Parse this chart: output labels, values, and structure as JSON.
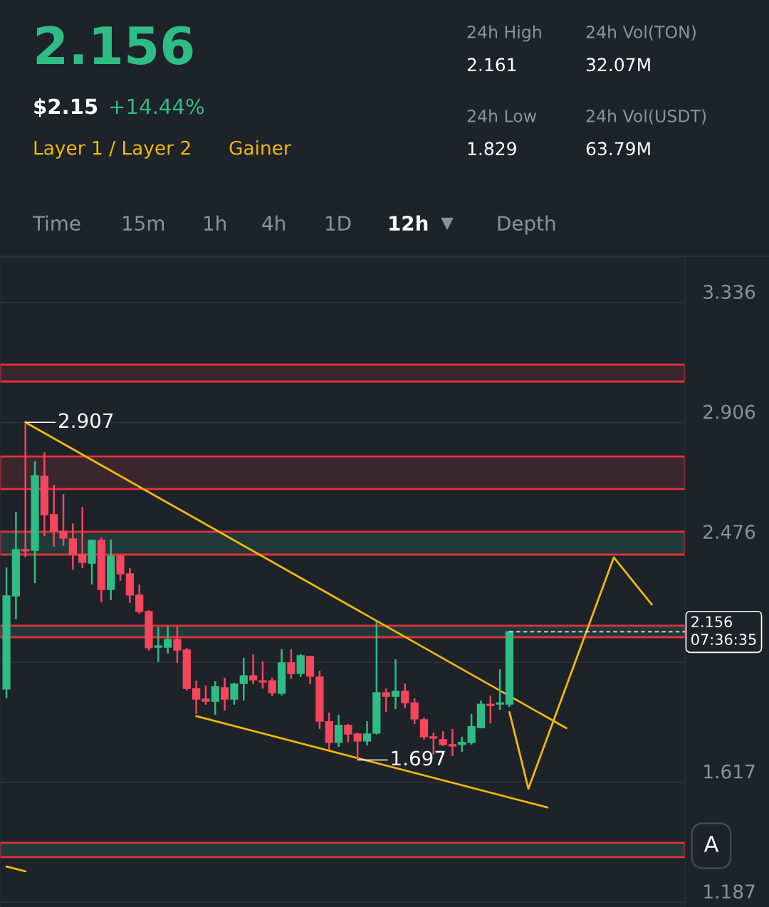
{
  "chart_data": {
    "type": "candlestick",
    "categories": [
      null,
      null,
      null,
      null,
      null,
      null,
      null,
      null,
      null,
      null,
      null,
      null,
      null,
      null,
      null,
      null,
      null,
      null,
      null,
      null,
      null,
      null,
      null,
      null,
      null,
      null,
      null,
      null,
      null,
      null,
      null,
      null,
      null,
      null,
      null,
      null,
      null,
      null,
      null,
      null,
      null,
      null,
      null,
      null,
      null,
      null,
      null,
      null,
      null,
      null,
      null,
      null,
      null,
      null,
      null,
      null,
      null,
      null,
      null,
      null,
      null,
      null,
      null,
      null,
      null,
      null,
      null,
      null,
      null,
      null,
      null,
      null
    ],
    "series": [
      {
        "type": "candlestick",
        "ohlc": [
          [
            1.951,
            2.387,
            1.918,
            2.285
          ],
          [
            2.285,
            2.586,
            2.201,
            2.451
          ],
          [
            2.451,
            2.907,
            2.423,
            2.446
          ],
          [
            2.448,
            2.767,
            2.331,
            2.716
          ],
          [
            2.714,
            2.8,
            2.499,
            2.576
          ],
          [
            2.576,
            2.683,
            2.461,
            2.517
          ],
          [
            2.517,
            2.65,
            2.464,
            2.492
          ],
          [
            2.489,
            2.545,
            2.379,
            2.433
          ],
          [
            2.433,
            2.604,
            2.385,
            2.405
          ],
          [
            2.402,
            2.487,
            2.326,
            2.484
          ],
          [
            2.484,
            2.494,
            2.262,
            2.308
          ],
          [
            2.308,
            2.487,
            2.27,
            2.428
          ],
          [
            2.428,
            2.433,
            2.339,
            2.364
          ],
          [
            2.364,
            2.385,
            2.26,
            2.288
          ],
          [
            2.288,
            2.326,
            2.221,
            2.229
          ],
          [
            2.229,
            2.234,
            2.089,
            2.099
          ],
          [
            2.101,
            2.173,
            2.048,
            2.106
          ],
          [
            2.101,
            2.175,
            2.078,
            2.129
          ],
          [
            2.129,
            2.175,
            2.045,
            2.091
          ],
          [
            2.091,
            2.099,
            1.946,
            1.953
          ],
          [
            1.953,
            1.981,
            1.862,
            1.915
          ],
          [
            1.915,
            1.964,
            1.895,
            1.907
          ],
          [
            1.907,
            1.979,
            1.859,
            1.959
          ],
          [
            1.956,
            1.992,
            1.874,
            1.915
          ],
          [
            1.915,
            1.974,
            1.895,
            1.969
          ],
          [
            1.971,
            2.063,
            1.91,
            1.999
          ],
          [
            1.999,
            2.076,
            1.969,
            1.984
          ],
          [
            1.981,
            2.05,
            1.953,
            1.976
          ],
          [
            1.981,
            1.992,
            1.925,
            1.938
          ],
          [
            1.936,
            2.094,
            1.928,
            2.045
          ],
          [
            2.045,
            2.094,
            1.987,
            2.007
          ],
          [
            2.007,
            2.076,
            1.994,
            2.071
          ],
          [
            2.068,
            2.068,
            1.969,
            1.997
          ],
          [
            1.994,
            2.017,
            1.808,
            1.836
          ],
          [
            1.834,
            1.867,
            1.734,
            1.76
          ],
          [
            1.76,
            1.859,
            1.744,
            1.821
          ],
          [
            1.821,
            1.826,
            1.76,
            1.79
          ],
          [
            1.79,
            1.795,
            1.697,
            1.765
          ],
          [
            1.765,
            1.836,
            1.749,
            1.79
          ],
          [
            1.793,
            2.193,
            1.788,
            1.938
          ],
          [
            1.938,
            1.953,
            1.869,
            1.925
          ],
          [
            1.925,
            2.058,
            1.879,
            1.943
          ],
          [
            1.943,
            1.971,
            1.882,
            1.902
          ],
          [
            1.902,
            1.918,
            1.826,
            1.844
          ],
          [
            1.841,
            1.849,
            1.77,
            1.78
          ],
          [
            1.78,
            1.795,
            1.716,
            1.775
          ],
          [
            1.77,
            1.8,
            1.747,
            1.752
          ],
          [
            1.752,
            1.808,
            1.711,
            1.747
          ],
          [
            1.752,
            1.78,
            1.726,
            1.76
          ],
          [
            1.76,
            1.862,
            1.752,
            1.816
          ],
          [
            1.813,
            1.91,
            1.811,
            1.897
          ],
          [
            1.897,
            1.928,
            1.828,
            1.892
          ],
          [
            1.897,
            2.022,
            1.877,
            1.902
          ],
          [
            1.897,
            2.161,
            1.887,
            2.156
          ],
          null,
          null,
          null,
          null,
          null,
          null,
          null,
          null,
          null,
          null,
          null,
          null,
          null,
          null,
          null,
          null,
          null,
          null
        ],
        "colors": [
          "#2ebd85",
          "#2ebd85",
          "#f6465d",
          "#2ebd85",
          "#f6465d",
          "#f6465d",
          "#f6465d",
          "#f6465d",
          "#f6465d",
          "#2ebd85",
          "#f6465d",
          "#2ebd85",
          "#f6465d",
          "#f6465d",
          "#f6465d",
          "#f6465d",
          "#2ebd85",
          "#2ebd85",
          "#f6465d",
          "#f6465d",
          "#f6465d",
          "#f6465d",
          "#2ebd85",
          "#f6465d",
          "#2ebd85",
          "#2ebd85",
          "#f6465d",
          "#f6465d",
          "#f6465d",
          "#2ebd85",
          "#f6465d",
          "#2ebd85",
          "#f6465d",
          "#f6465d",
          "#f6465d",
          "#2ebd85",
          "#f6465d",
          "#f6465d",
          "#2ebd85",
          "#2ebd85",
          "#f6465d",
          "#2ebd85",
          "#f6465d",
          "#f6465d",
          "#f6465d",
          "#f6465d",
          "#f6465d",
          "#f6465d",
          "#2ebd85",
          "#2ebd85",
          "#2ebd85",
          "#f6465d",
          "#2ebd85",
          "#2ebd85",
          null,
          null,
          null,
          null,
          null,
          null,
          null,
          null,
          null,
          null,
          null,
          null,
          null,
          null,
          null,
          null,
          null,
          null
        ]
      },
      {
        "type": "line",
        "color": "#f0b90b",
        "values": [
          null,
          null,
          2.907,
          null,
          null,
          null,
          null,
          null,
          null,
          null,
          null,
          null,
          null,
          null,
          null,
          null,
          null,
          null,
          null,
          null,
          null,
          null,
          null,
          null,
          null,
          null,
          null,
          null,
          null,
          null,
          null,
          null,
          null,
          null,
          null,
          null,
          null,
          null,
          null,
          null,
          null,
          null,
          null,
          null,
          null,
          null,
          null,
          null,
          null,
          null,
          null,
          null,
          null,
          null,
          null,
          null,
          null,
          null,
          null,
          1.811,
          null,
          null,
          null,
          null,
          null,
          null,
          null,
          null,
          null,
          null,
          null,
          null
        ]
      },
      {
        "type": "line",
        "color": "#f0b90b",
        "values": [
          null,
          null,
          null,
          null,
          null,
          null,
          null,
          null,
          null,
          null,
          null,
          null,
          null,
          null,
          null,
          null,
          null,
          null,
          null,
          null,
          1.854,
          null,
          null,
          null,
          null,
          null,
          null,
          null,
          null,
          null,
          null,
          null,
          null,
          null,
          null,
          null,
          null,
          null,
          null,
          null,
          null,
          null,
          null,
          null,
          null,
          null,
          null,
          null,
          null,
          null,
          null,
          null,
          null,
          null,
          null,
          null,
          null,
          1.527,
          null,
          null,
          null,
          null,
          null,
          null,
          null,
          null,
          null,
          null,
          null,
          null,
          null,
          null
        ]
      },
      {
        "type": "line",
        "color": "#f0b90b",
        "values": [
          null,
          null,
          null,
          null,
          null,
          null,
          null,
          null,
          null,
          null,
          null,
          null,
          null,
          null,
          null,
          null,
          null,
          null,
          null,
          null,
          null,
          null,
          null,
          null,
          null,
          null,
          null,
          null,
          null,
          null,
          null,
          null,
          null,
          null,
          null,
          null,
          null,
          null,
          null,
          null,
          null,
          null,
          null,
          null,
          null,
          null,
          null,
          null,
          null,
          null,
          null,
          null,
          null,
          1.869,
          null,
          1.594,
          null,
          null,
          null,
          null,
          null,
          null,
          null,
          null,
          2.423,
          null,
          null,
          null,
          2.254,
          null,
          null,
          null
        ]
      },
      {
        "type": "line",
        "color": "#f0b90b",
        "values": [
          1.315,
          null,
          1.298,
          null,
          null,
          null,
          null,
          null,
          null,
          null,
          null,
          null,
          null,
          null,
          null,
          null,
          null,
          null,
          null,
          null,
          null,
          null,
          null,
          null,
          null,
          null,
          null,
          null,
          null,
          null,
          null,
          null,
          null,
          null,
          null,
          null,
          null,
          null,
          null,
          null,
          null,
          null,
          null,
          null,
          null,
          null,
          null,
          null,
          null,
          null,
          null,
          null,
          null,
          null,
          null,
          null,
          null,
          null,
          null,
          null,
          null,
          null,
          null,
          null,
          null,
          null,
          null,
          null,
          null,
          null,
          null,
          null
        ]
      }
    ],
    "ylim": [
      1.17,
      3.497
    ],
    "yticks": [
      3.336,
      2.906,
      2.476,
      {
        "value": 2.047,
        "label": null
      },
      1.617,
      1.187
    ],
    "grid": "y",
    "tick_labels": "y",
    "bands": [
      {
        "axis": "y",
        "from": 3.053,
        "to": 3.114,
        "color": "#3b262e"
      },
      {
        "axis": "y",
        "from": 2.668,
        "to": 2.785,
        "color": "#3b262e"
      },
      {
        "axis": "y",
        "from": 2.433,
        "to": 2.515,
        "color": "#213a39"
      },
      {
        "axis": "y",
        "from": 2.137,
        "to": 2.178,
        "color": "#213a39"
      },
      {
        "axis": "y",
        "from": 1.349,
        "to": 1.4,
        "color": "#213a39"
      }
    ],
    "ref_lines": [
      {
        "axis": "y",
        "value": 2.156,
        "label": "2.156\n07:36:35",
        "color": "#ffffff",
        "line_style": "dashed"
      }
    ],
    "annotations": [
      "2.156",
      "$2.15",
      "+14.44%",
      "Layer 1 / Layer 2",
      "Gainer",
      "24h High",
      "2.161",
      "24h Vol(TON)",
      "32.07M",
      "24h Low",
      "1.829",
      "24h Vol(USDT)",
      "63.79M",
      "Time",
      "15m",
      "1h",
      "4h",
      "1D",
      "12h",
      "Depth",
      "A",
      "2.907",
      "1.697"
    ]
  }
}
